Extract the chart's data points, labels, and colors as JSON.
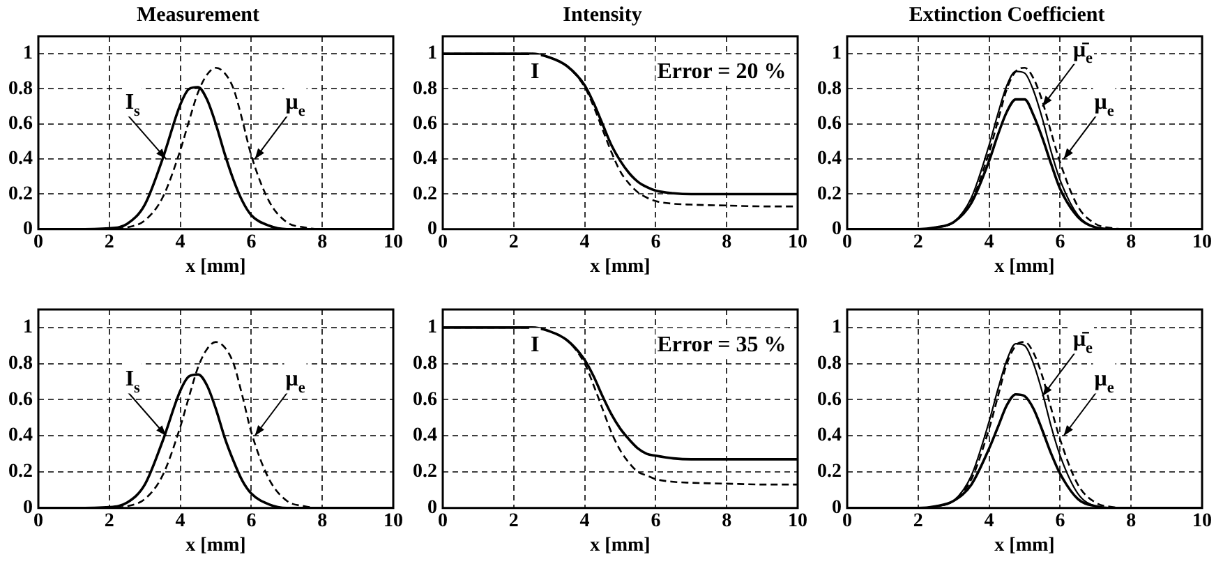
{
  "chart_data": [
    {
      "type": "line",
      "title": "Measurement",
      "xlabel": "x [mm]",
      "x": [
        0,
        1,
        2,
        2.5,
        3,
        3.5,
        4,
        4.25,
        4.5,
        4.75,
        5,
        5.25,
        5.5,
        5.75,
        6,
        6.5,
        7,
        7.5,
        8,
        9,
        10
      ],
      "xlim": [
        0,
        10
      ],
      "xticks": [
        0,
        2,
        4,
        6,
        8,
        10
      ],
      "ylim": [
        0,
        1.1
      ],
      "yticks": [
        0,
        0.2,
        0.4,
        0.6,
        0.8,
        1
      ],
      "grid": true,
      "series": [
        {
          "color": "#000000",
          "line_style": "solid",
          "values": [
            0,
            0,
            0.005,
            0.03,
            0.14,
            0.4,
            0.71,
            0.8,
            0.81,
            0.74,
            0.6,
            0.43,
            0.28,
            0.16,
            0.08,
            0.02,
            0,
            0,
            0,
            0,
            0
          ]
        },
        {
          "color": "#000000",
          "line_style": "dashed",
          "values": [
            0,
            0,
            0,
            0.01,
            0.05,
            0.18,
            0.45,
            0.62,
            0.78,
            0.88,
            0.92,
            0.89,
            0.8,
            0.62,
            0.42,
            0.16,
            0.04,
            0.01,
            0,
            0,
            0
          ]
        }
      ],
      "annotations": [
        {
          "text": "I$_{s}$",
          "x": 3.6,
          "y": 0.4
        },
        {
          "text": "μ$_{e}$",
          "x": 6.1,
          "y": 0.4
        }
      ]
    },
    {
      "type": "line",
      "title": "Intensity",
      "xlabel": "x [mm]",
      "x": [
        0,
        1,
        2,
        2.5,
        3,
        3.5,
        4,
        4.25,
        4.5,
        4.75,
        5,
        5.25,
        5.5,
        5.75,
        6,
        6.5,
        7,
        7.5,
        8,
        9,
        10
      ],
      "xlim": [
        0,
        10
      ],
      "xticks": [
        0,
        2,
        4,
        6,
        8,
        10
      ],
      "ylim": [
        0,
        1.1
      ],
      "yticks": [
        0,
        0.2,
        0.4,
        0.6,
        0.8,
        1
      ],
      "grid": true,
      "series": [
        {
          "color": "#000000",
          "line_style": "solid",
          "values": [
            1,
            1,
            1,
            1,
            0.98,
            0.93,
            0.82,
            0.72,
            0.6,
            0.48,
            0.39,
            0.32,
            0.27,
            0.24,
            0.22,
            0.205,
            0.2,
            0.2,
            0.2,
            0.2,
            0.2
          ]
        },
        {
          "color": "#000000",
          "line_style": "dashed",
          "values": [
            1,
            1,
            1,
            1,
            0.98,
            0.93,
            0.81,
            0.7,
            0.57,
            0.44,
            0.33,
            0.26,
            0.21,
            0.18,
            0.16,
            0.145,
            0.14,
            0.137,
            0.135,
            0.13,
            0.13
          ]
        }
      ],
      "annotations": [
        "I",
        "Error = 20 %"
      ]
    },
    {
      "type": "line",
      "title": "Extinction Coefficient",
      "xlabel": "x [mm]",
      "x": [
        0,
        1,
        2,
        2.5,
        3,
        3.5,
        4,
        4.25,
        4.5,
        4.75,
        5,
        5.25,
        5.5,
        5.75,
        6,
        6.5,
        7,
        7.5,
        8,
        9,
        10
      ],
      "xlim": [
        0,
        10
      ],
      "xticks": [
        0,
        2,
        4,
        6,
        8,
        10
      ],
      "ylim": [
        0,
        1.1
      ],
      "yticks": [
        0,
        0.2,
        0.4,
        0.6,
        0.8,
        1
      ],
      "grid": true,
      "series": [
        {
          "color": "#000000",
          "line_style": "solid",
          "values": [
            0,
            0,
            0,
            0.01,
            0.04,
            0.15,
            0.39,
            0.54,
            0.67,
            0.74,
            0.74,
            0.65,
            0.52,
            0.37,
            0.23,
            0.07,
            0.01,
            0,
            0,
            0,
            0
          ]
        },
        {
          "color": "#000000",
          "line_style": "solid",
          "values": [
            0,
            0,
            0,
            0.01,
            0.04,
            0.18,
            0.48,
            0.66,
            0.82,
            0.9,
            0.89,
            0.79,
            0.63,
            0.44,
            0.28,
            0.08,
            0.01,
            0,
            0,
            0,
            0
          ]
        },
        {
          "color": "#000000",
          "line_style": "dashed",
          "values": [
            0,
            0,
            0,
            0.01,
            0.04,
            0.16,
            0.44,
            0.62,
            0.8,
            0.9,
            0.92,
            0.86,
            0.73,
            0.55,
            0.38,
            0.13,
            0.03,
            0.005,
            0,
            0,
            0
          ]
        }
      ],
      "annotations": [
        {
          "text": "μ̄$_{e}$",
          "x": 5.5,
          "y": 0.7
        },
        {
          "text": "μ$_{e}$",
          "x": 6.1,
          "y": 0.4
        }
      ]
    },
    {
      "type": "line",
      "xlabel": "x [mm]",
      "x": [
        0,
        1,
        2,
        2.5,
        3,
        3.5,
        4,
        4.25,
        4.5,
        4.75,
        5,
        5.25,
        5.5,
        5.75,
        6,
        6.5,
        7,
        7.5,
        8,
        9,
        10
      ],
      "xlim": [
        0,
        10
      ],
      "xticks": [
        0,
        2,
        4,
        6,
        8,
        10
      ],
      "ylim": [
        0,
        1.1
      ],
      "yticks": [
        0,
        0.2,
        0.4,
        0.6,
        0.8,
        1
      ],
      "grid": true,
      "series": [
        {
          "color": "#000000",
          "line_style": "solid",
          "values": [
            0,
            0,
            0.005,
            0.03,
            0.13,
            0.37,
            0.65,
            0.73,
            0.74,
            0.68,
            0.55,
            0.39,
            0.26,
            0.15,
            0.08,
            0.02,
            0,
            0,
            0,
            0,
            0
          ]
        },
        {
          "color": "#000000",
          "line_style": "dashed",
          "values": [
            0,
            0,
            0,
            0.01,
            0.05,
            0.18,
            0.45,
            0.62,
            0.78,
            0.88,
            0.92,
            0.89,
            0.8,
            0.62,
            0.42,
            0.16,
            0.04,
            0.01,
            0,
            0,
            0
          ]
        }
      ],
      "annotations": [
        {
          "text": "I$_{s}$",
          "x": 3.6,
          "y": 0.4
        },
        {
          "text": "μ$_{e}$",
          "x": 6.1,
          "y": 0.4
        }
      ]
    },
    {
      "type": "line",
      "xlabel": "x [mm]",
      "x": [
        0,
        1,
        2,
        2.5,
        3,
        3.5,
        4,
        4.25,
        4.5,
        4.75,
        5,
        5.25,
        5.5,
        5.75,
        6,
        6.5,
        7,
        7.5,
        8,
        9,
        10
      ],
      "xlim": [
        0,
        10
      ],
      "xticks": [
        0,
        2,
        4,
        6,
        8,
        10
      ],
      "ylim": [
        0,
        1.1
      ],
      "yticks": [
        0,
        0.2,
        0.4,
        0.6,
        0.8,
        1
      ],
      "grid": true,
      "series": [
        {
          "color": "#000000",
          "line_style": "solid",
          "values": [
            1,
            1,
            1,
            1,
            0.98,
            0.93,
            0.82,
            0.73,
            0.62,
            0.52,
            0.44,
            0.38,
            0.33,
            0.3,
            0.29,
            0.275,
            0.27,
            0.27,
            0.27,
            0.27,
            0.27
          ]
        },
        {
          "color": "#000000",
          "line_style": "dashed",
          "values": [
            1,
            1,
            1,
            1,
            0.98,
            0.93,
            0.8,
            0.68,
            0.55,
            0.42,
            0.32,
            0.25,
            0.2,
            0.18,
            0.16,
            0.145,
            0.14,
            0.137,
            0.135,
            0.13,
            0.13
          ]
        }
      ],
      "annotations": [
        "I",
        "Error = 35 %"
      ]
    },
    {
      "type": "line",
      "xlabel": "x [mm]",
      "x": [
        0,
        1,
        2,
        2.5,
        3,
        3.5,
        4,
        4.25,
        4.5,
        4.75,
        5,
        5.25,
        5.5,
        5.75,
        6,
        6.5,
        7,
        7.5,
        8,
        9,
        10
      ],
      "xlim": [
        0,
        10
      ],
      "xticks": [
        0,
        2,
        4,
        6,
        8,
        10
      ],
      "ylim": [
        0,
        1.1
      ],
      "yticks": [
        0,
        0.2,
        0.4,
        0.6,
        0.8,
        1
      ],
      "grid": true,
      "series": [
        {
          "color": "#000000",
          "line_style": "solid",
          "values": [
            0,
            0,
            0,
            0.01,
            0.04,
            0.13,
            0.33,
            0.45,
            0.57,
            0.63,
            0.62,
            0.55,
            0.43,
            0.3,
            0.19,
            0.05,
            0.01,
            0,
            0,
            0,
            0
          ]
        },
        {
          "color": "#000000",
          "line_style": "solid",
          "values": [
            0,
            0,
            0,
            0.01,
            0.04,
            0.18,
            0.48,
            0.66,
            0.82,
            0.91,
            0.9,
            0.8,
            0.64,
            0.45,
            0.29,
            0.08,
            0.01,
            0,
            0,
            0,
            0
          ]
        },
        {
          "color": "#000000",
          "line_style": "dashed",
          "values": [
            0,
            0,
            0,
            0.01,
            0.04,
            0.16,
            0.44,
            0.62,
            0.8,
            0.9,
            0.92,
            0.86,
            0.73,
            0.55,
            0.38,
            0.13,
            0.03,
            0.005,
            0,
            0,
            0
          ]
        }
      ],
      "annotations": [
        {
          "text": "μ̄$_{e}$",
          "x": 5.5,
          "y": 0.62
        },
        {
          "text": "μ$_{e}$",
          "x": 6.1,
          "y": 0.4
        }
      ]
    }
  ]
}
